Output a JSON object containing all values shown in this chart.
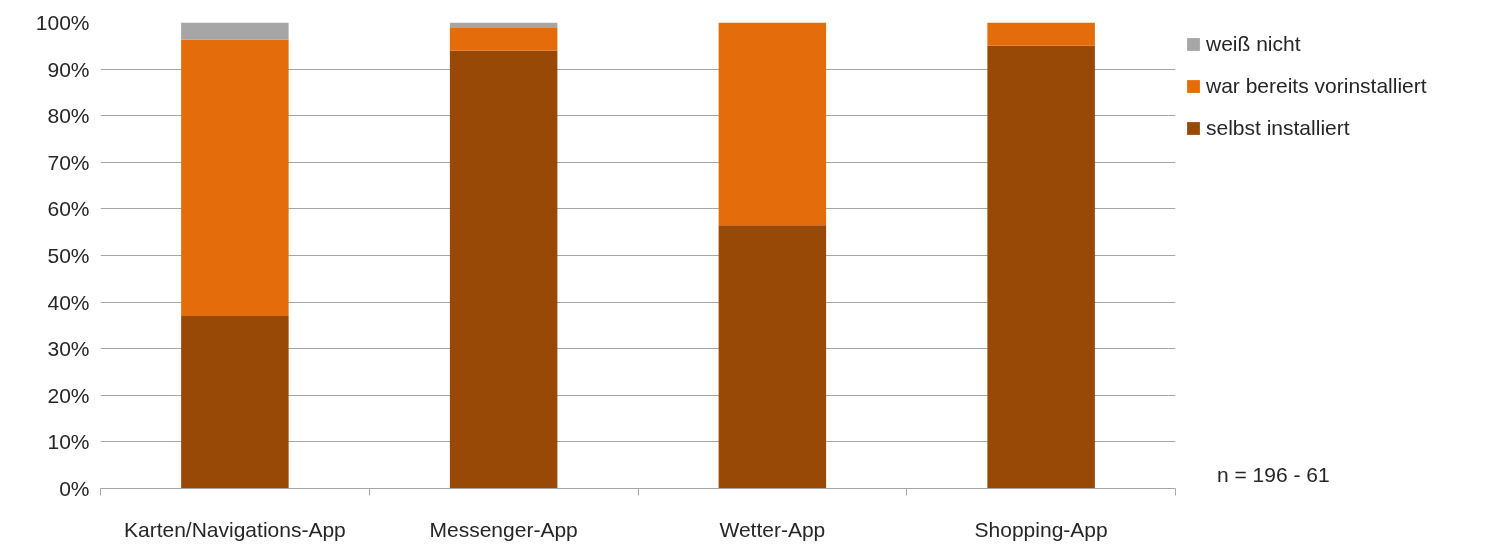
{
  "chart_data": {
    "type": "bar",
    "stacked": true,
    "categories": [
      "Karten/Navigations-App",
      "Messenger-App",
      "Wetter-App",
      "Shopping-App"
    ],
    "series": [
      {
        "name": "selbst installiert",
        "color": "#994906",
        "values": [
          37,
          94,
          56.5,
          95
        ]
      },
      {
        "name": "war bereits vorinstalliert",
        "color": "#e46c0a",
        "values": [
          59.3,
          5,
          43.5,
          5
        ]
      },
      {
        "name": "weiß nicht",
        "color": "#a6a6a6",
        "values": [
          3.7,
          1,
          0,
          0
        ]
      }
    ],
    "ylim": [
      0,
      100
    ],
    "yticks": [
      {
        "value": 0,
        "label": "0%"
      },
      {
        "value": 10,
        "label": "10%"
      },
      {
        "value": 20,
        "label": "20%"
      },
      {
        "value": 30,
        "label": "30%"
      },
      {
        "value": 40,
        "label": "40%"
      },
      {
        "value": 50,
        "label": "50%"
      },
      {
        "value": 60,
        "label": "60%"
      },
      {
        "value": 70,
        "label": "70%"
      },
      {
        "value": 80,
        "label": "80%"
      },
      {
        "value": 90,
        "label": "90%"
      },
      {
        "value": 100,
        "label": "100%"
      }
    ],
    "grid": "y",
    "legend": "right",
    "annotations": [
      "n = 196 - 61"
    ]
  }
}
